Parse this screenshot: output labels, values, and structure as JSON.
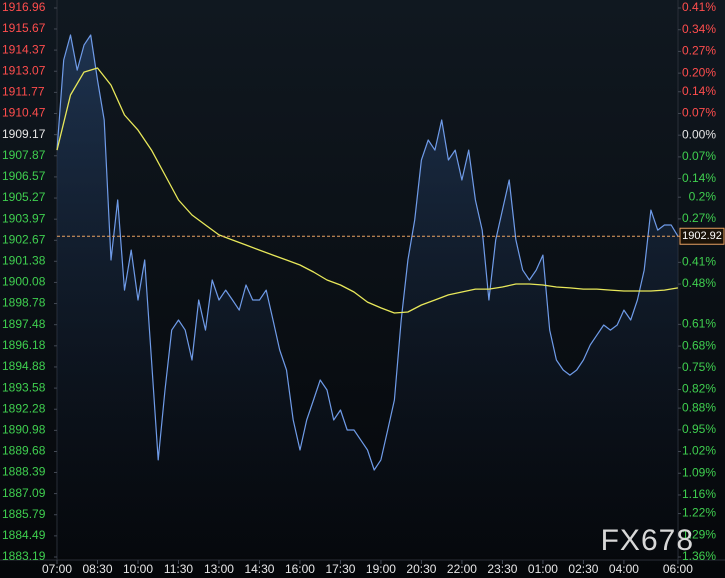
{
  "chart_data": {
    "type": "line",
    "watermark": "FX678",
    "last_price": 1902.92,
    "last_price_color": "#e8a060",
    "up_color": "#ff4d4d",
    "down_color": "#3fcf4f",
    "neutral_color": "#e6e6e6",
    "xlim": [
      "07:00",
      "06:38"
    ],
    "xticks": [
      "07:00",
      "08:30",
      "10:00",
      "11:30",
      "13:00",
      "14:30",
      "16:00",
      "17:30",
      "19:00",
      "20:30",
      "22:00",
      "23:30",
      "01:00",
      "02:30",
      "04:00",
      "06:00"
    ],
    "ylim": [
      1883.19,
      1916.96
    ],
    "yticks": [
      1916.96,
      1915.67,
      1914.37,
      1913.07,
      1911.77,
      1910.47,
      1909.17,
      1907.87,
      1906.57,
      1905.27,
      1903.97,
      1902.67,
      1901.38,
      1900.08,
      1898.78,
      1897.48,
      1896.18,
      1894.88,
      1893.58,
      1892.28,
      1890.98,
      1889.68,
      1888.39,
      1887.09,
      1885.79,
      1884.49,
      1883.19
    ],
    "y2lim": [
      -1.36,
      0.41
    ],
    "y2ticks": [
      {
        "value": 0.41,
        "label": "0.41%"
      },
      {
        "value": 0.34,
        "label": "0.34%"
      },
      {
        "value": 0.27,
        "label": "0.27%"
      },
      {
        "value": 0.2,
        "label": "0.20%"
      },
      {
        "value": 0.14,
        "label": "0.14%"
      },
      {
        "value": 0.07,
        "label": "0.07%"
      },
      {
        "value": 0,
        "label": "0.00%"
      },
      {
        "value": -0.07,
        "label": "0.07%"
      },
      {
        "value": -0.14,
        "label": "0.14%"
      },
      {
        "value": -0.2,
        "label": "0.2%"
      },
      {
        "value": -0.27,
        "label": "0.27%"
      },
      {
        "value": -0.41,
        "label": "0.41%"
      },
      {
        "value": -0.48,
        "label": "0.48%"
      },
      {
        "value": -0.61,
        "label": "0.61%"
      },
      {
        "value": -0.68,
        "label": "0.68%"
      },
      {
        "value": -0.75,
        "label": "0.75%"
      },
      {
        "value": -0.82,
        "label": "0.82%"
      },
      {
        "value": -0.88,
        "label": "0.88%"
      },
      {
        "value": -0.95,
        "label": "0.95%"
      },
      {
        "value": -1.02,
        "label": "1.02%"
      },
      {
        "value": -1.09,
        "label": "1.09%"
      },
      {
        "value": -1.16,
        "label": "1.16%"
      },
      {
        "value": -1.22,
        "label": "1.22%"
      },
      {
        "value": -1.29,
        "label": "1.29%"
      },
      {
        "value": -1.36,
        "label": "1.36%"
      }
    ],
    "series": [
      {
        "color": "#6f9be8",
        "area": true,
        "x": [
          "07:00",
          "07:15",
          "07:30",
          "07:45",
          "08:00",
          "08:15",
          "08:30",
          "08:45",
          "09:00",
          "09:15",
          "09:30",
          "09:45",
          "10:00",
          "10:15",
          "10:30",
          "10:45",
          "11:00",
          "11:15",
          "11:30",
          "11:45",
          "12:00",
          "12:15",
          "12:30",
          "12:45",
          "13:00",
          "13:15",
          "13:30",
          "13:45",
          "14:00",
          "14:15",
          "14:30",
          "14:45",
          "15:00",
          "15:15",
          "15:30",
          "15:45",
          "16:00",
          "16:15",
          "16:30",
          "16:45",
          "17:00",
          "17:15",
          "17:30",
          "17:45",
          "18:00",
          "18:15",
          "18:30",
          "18:45",
          "19:00",
          "19:15",
          "19:30",
          "19:45",
          "20:00",
          "20:15",
          "20:30",
          "20:45",
          "21:00",
          "21:15",
          "21:30",
          "21:45",
          "22:00",
          "22:15",
          "22:30",
          "22:45",
          "23:00",
          "23:15",
          "23:30",
          "23:45",
          "00:00",
          "00:15",
          "00:30",
          "00:45",
          "01:00",
          "01:15",
          "01:30",
          "01:45",
          "02:00",
          "02:15",
          "02:30",
          "02:45",
          "03:00",
          "03:15",
          "03:30",
          "03:45",
          "04:00",
          "04:15",
          "04:30",
          "04:45",
          "05:00",
          "05:15",
          "05:30",
          "05:45",
          "06:00"
        ],
        "values": [
          1908.22,
          1913.76,
          1915.3,
          1913.14,
          1914.68,
          1915.3,
          1912.53,
          1910.07,
          1901.46,
          1905.15,
          1899.61,
          1902.07,
          1899.0,
          1901.46,
          1895.31,
          1889.16,
          1893.46,
          1897.15,
          1897.77,
          1897.15,
          1895.31,
          1899.0,
          1897.15,
          1900.23,
          1899.0,
          1899.61,
          1899.0,
          1898.38,
          1899.92,
          1899.0,
          1899.0,
          1899.61,
          1897.77,
          1895.92,
          1894.69,
          1891.62,
          1889.77,
          1891.62,
          1892.85,
          1894.08,
          1893.46,
          1891.62,
          1892.23,
          1891.0,
          1891.0,
          1890.39,
          1889.77,
          1888.54,
          1889.16,
          1891.0,
          1892.85,
          1897.77,
          1901.46,
          1903.92,
          1907.61,
          1908.84,
          1908.22,
          1910.07,
          1907.61,
          1908.22,
          1906.38,
          1908.22,
          1905.15,
          1903.3,
          1899.0,
          1902.69,
          1904.53,
          1906.38,
          1902.69,
          1900.84,
          1900.23,
          1900.84,
          1901.76,
          1897.15,
          1895.31,
          1894.69,
          1894.38,
          1894.69,
          1895.31,
          1896.23,
          1896.84,
          1897.46,
          1897.15,
          1897.46,
          1898.38,
          1897.77,
          1899.0,
          1900.84,
          1904.53,
          1903.3,
          1903.61,
          1903.61,
          1902.92
        ]
      },
      {
        "color": "#e8e85a",
        "area": false,
        "x": [
          "07:00",
          "07:30",
          "08:00",
          "08:30",
          "09:00",
          "09:30",
          "10:00",
          "10:30",
          "11:00",
          "11:30",
          "12:00",
          "12:30",
          "13:00",
          "13:30",
          "14:00",
          "14:30",
          "15:00",
          "15:30",
          "16:00",
          "16:30",
          "17:00",
          "17:30",
          "18:00",
          "18:30",
          "19:00",
          "19:30",
          "20:00",
          "20:30",
          "21:00",
          "21:30",
          "22:00",
          "22:30",
          "23:00",
          "23:30",
          "00:00",
          "00:30",
          "01:00",
          "01:30",
          "02:00",
          "02:30",
          "03:00",
          "03:30",
          "04:00",
          "04:30",
          "05:00",
          "05:30",
          "06:00"
        ],
        "values": [
          1908.22,
          1911.61,
          1913.02,
          1913.27,
          1912.22,
          1910.38,
          1909.45,
          1908.22,
          1906.69,
          1905.15,
          1904.23,
          1903.61,
          1903.0,
          1902.69,
          1902.38,
          1902.07,
          1901.76,
          1901.46,
          1901.15,
          1900.72,
          1900.23,
          1899.92,
          1899.49,
          1898.87,
          1898.51,
          1898.2,
          1898.26,
          1898.69,
          1899.0,
          1899.31,
          1899.49,
          1899.67,
          1899.67,
          1899.8,
          1899.98,
          1899.98,
          1899.92,
          1899.8,
          1899.74,
          1899.67,
          1899.67,
          1899.61,
          1899.55,
          1899.55,
          1899.55,
          1899.61,
          1899.74
        ]
      }
    ]
  }
}
